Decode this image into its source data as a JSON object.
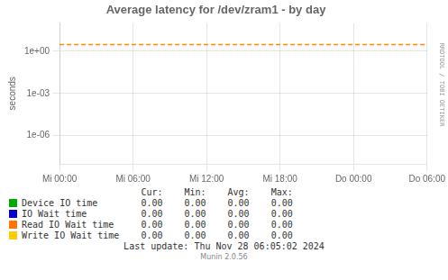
{
  "chart_data": {
    "type": "line",
    "title": "Average latency for /dev/zram1 - by day",
    "ylabel": "seconds",
    "log": "y",
    "grid": true,
    "xlim": [
      0,
      30
    ],
    "xticks": [
      {
        "value": 0,
        "label": "Mi 00:00"
      },
      {
        "value": 6,
        "label": "Mi 06:00"
      },
      {
        "value": 12,
        "label": "Mi 12:00"
      },
      {
        "value": 18,
        "label": "Mi 18:00"
      },
      {
        "value": 24,
        "label": "Do 00:00"
      },
      {
        "value": 30,
        "label": "Do 06:00"
      }
    ],
    "ylim": [
      1e-08,
      100
    ],
    "yticks": [
      {
        "value": 1e-06,
        "label": "1e-06"
      },
      {
        "value": 0.001,
        "label": "1e-03"
      },
      {
        "value": 1,
        "label": "1e+00"
      }
    ],
    "annotations": [
      {
        "type": "hline",
        "y": 3.0,
        "color": "#ff8800",
        "line_style": "dashed"
      }
    ],
    "stats_headers": [
      "Cur:",
      "Min:",
      "Avg:",
      "Max:"
    ],
    "series": [
      {
        "name": "Device IO time",
        "color": "#00aa00",
        "values": [],
        "stats": [
          0,
          0,
          0,
          0
        ],
        "stats_labels": [
          "0.00",
          "0.00",
          "0.00",
          "0.00"
        ]
      },
      {
        "name": "IO Wait time",
        "color": "#0000cc",
        "values": [],
        "stats": [
          0,
          0,
          0,
          0
        ],
        "stats_labels": [
          "0.00",
          "0.00",
          "0.00",
          "0.00"
        ]
      },
      {
        "name": "Read IO Wait time",
        "color": "#ff7700",
        "values": [],
        "stats": [
          0,
          0,
          0,
          0
        ],
        "stats_labels": [
          "0.00",
          "0.00",
          "0.00",
          "0.00"
        ]
      },
      {
        "name": "Write IO Wait time",
        "color": "#ffcc00",
        "values": [],
        "stats": [
          0,
          0,
          0,
          0
        ],
        "stats_labels": [
          "0.00",
          "0.00",
          "0.00",
          "0.00"
        ]
      }
    ],
    "watermark": "RRDTOOL / TOBI OETIKER",
    "footnotes": [
      "Last update: Thu Nov 28 06:05:02 2024",
      "Munin 2.0.56"
    ]
  }
}
